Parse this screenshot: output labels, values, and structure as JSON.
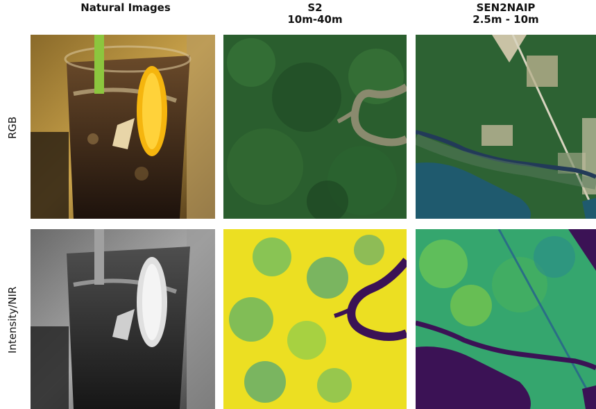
{
  "columns": [
    {
      "title": "Natural Images",
      "subtitle": ""
    },
    {
      "title": "S2",
      "subtitle": "10m-40m"
    },
    {
      "title": "SEN2NAIP",
      "subtitle": "2.5m - 10m"
    }
  ],
  "rows": [
    {
      "label": "RGB"
    },
    {
      "label": "Intensity/NIR"
    }
  ],
  "panels": [
    {
      "row": "RGB",
      "column": "Natural Images",
      "content": "glass of iced tea with lemon slice and green straw"
    },
    {
      "row": "RGB",
      "column": "S2",
      "content": "forest with winding river"
    },
    {
      "row": "RGB",
      "column": "SEN2NAIP",
      "content": "forest, road, river and lake"
    },
    {
      "row": "Intensity/NIR",
      "column": "Natural Images",
      "content": "grayscale glass of iced tea with lemon slice"
    },
    {
      "row": "Intensity/NIR",
      "column": "S2",
      "content": "yellow-green NIR map with dark river"
    },
    {
      "row": "Intensity/NIR",
      "column": "SEN2NAIP",
      "content": "viridis NIR map with dark river and lake"
    }
  ],
  "colors": {
    "forest_dark": "#1f4f2a",
    "forest_mid": "#2f6b34",
    "river_rgb": "#7a7d66",
    "lake_rgb": "#1f5a6e",
    "nir_yellow": "#f1e51d",
    "nir_teal": "#2a8c8a",
    "nir_dark": "#3b1255"
  }
}
